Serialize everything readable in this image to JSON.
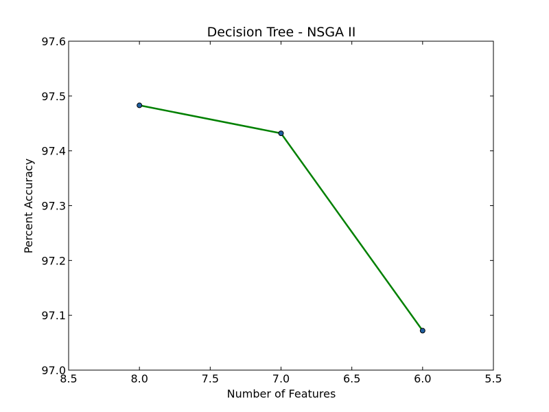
{
  "chart_data": {
    "type": "line",
    "title": "Decision Tree - NSGA II",
    "xlabel": "Number of Features",
    "ylabel": "Percent Accuracy",
    "xlim": [
      8.5,
      5.5
    ],
    "ylim": [
      97.0,
      97.6
    ],
    "x_axis_inverted": true,
    "x_ticks": [
      "8.5",
      "8.0",
      "7.5",
      "7.0",
      "6.5",
      "6.0",
      "5.5"
    ],
    "y_ticks": [
      "97.0",
      "97.1",
      "97.2",
      "97.3",
      "97.4",
      "97.5",
      "97.6"
    ],
    "x_tick_values": [
      8.5,
      8.0,
      7.5,
      7.0,
      6.5,
      6.0,
      5.5
    ],
    "y_tick_values": [
      97.0,
      97.1,
      97.2,
      97.3,
      97.4,
      97.5,
      97.6
    ],
    "grid": false,
    "series": [
      {
        "line_color": "#008000",
        "marker_color": "#1f5fa0",
        "x": [
          8,
          7,
          6
        ],
        "y": [
          97.483,
          97.432,
          97.072
        ]
      }
    ]
  }
}
